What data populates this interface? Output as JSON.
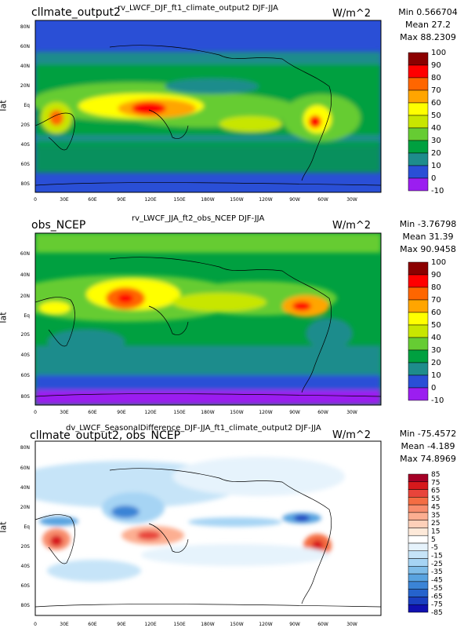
{
  "panels": [
    {
      "left_title": "cllmate_output2",
      "center_title": "rv_LWCF_DJF_ft1_climate_output2  DJF-JJA",
      "units": "W/m^2",
      "stats": [
        "Min 0.566704",
        "Mean 27.2",
        "Max 88.2309"
      ],
      "ylabel": "lat",
      "colorbar_labels": [
        "100",
        "90",
        "80",
        "70",
        "60",
        "50",
        "40",
        "30",
        "20",
        "10",
        "0",
        "-10"
      ],
      "colorbar_colors": [
        "#8b0000",
        "#ff0000",
        "#ff6600",
        "#ffa500",
        "#ffff00",
        "#c8e600",
        "#66cc33",
        "#00a040",
        "#1e8c8c",
        "#2a4fd6",
        "#9b1ef0"
      ]
    },
    {
      "left_title": "obs_NCEP",
      "center_title": "rv_LWCF_JJA_ft2_obs_NCEP  DJF-JJA",
      "units": "W/m^2",
      "stats": [
        "Min -3.76798",
        "Mean 31.39",
        "Max 90.9458"
      ],
      "ylabel": "lat",
      "colorbar_labels": [
        "100",
        "90",
        "80",
        "70",
        "60",
        "50",
        "40",
        "30",
        "20",
        "10",
        "0",
        "-10"
      ],
      "colorbar_colors": [
        "#8b0000",
        "#ff0000",
        "#ff6600",
        "#ffa500",
        "#ffff00",
        "#c8e600",
        "#66cc33",
        "#00a040",
        "#1e8c8c",
        "#2a4fd6",
        "#9b1ef0"
      ]
    },
    {
      "left_title": "cllmate_output2, obs_NCEP",
      "center_title": "dv_LWCF_SeasonalDifference_DJF-JJA_ft1_climate_output2  DJF-JJA",
      "units": "W/m^2",
      "stats": [
        "Min -75.4572",
        "Mean -4.189",
        "Max 74.8969"
      ],
      "ylabel": "lat",
      "colorbar_labels": [
        "85",
        "75",
        "65",
        "55",
        "45",
        "35",
        "25",
        "15",
        "5",
        "-5",
        "-15",
        "-25",
        "-35",
        "-45",
        "-55",
        "-65",
        "-75",
        "-85"
      ],
      "colorbar_colors": [
        "#a50026",
        "#d7191c",
        "#e8443a",
        "#f46d43",
        "#f88d6d",
        "#fcae91",
        "#fdd0b9",
        "#fde9d9",
        "#ffffff",
        "#e6f3fc",
        "#c6e4f8",
        "#a6d4f4",
        "#7fbde9",
        "#59a3e0",
        "#3b84d6",
        "#2563cc",
        "#1a3fc0",
        "#1010b0"
      ]
    }
  ],
  "lat_ticks": [
    "80N",
    "60N",
    "40N",
    "20N",
    "Eq",
    "20S",
    "40S",
    "60S",
    "80S"
  ],
  "lon_ticks": [
    "0",
    "30E",
    "60E",
    "90E",
    "120E",
    "150E",
    "180W",
    "150W",
    "120W",
    "90W",
    "60W",
    "30W"
  ]
}
